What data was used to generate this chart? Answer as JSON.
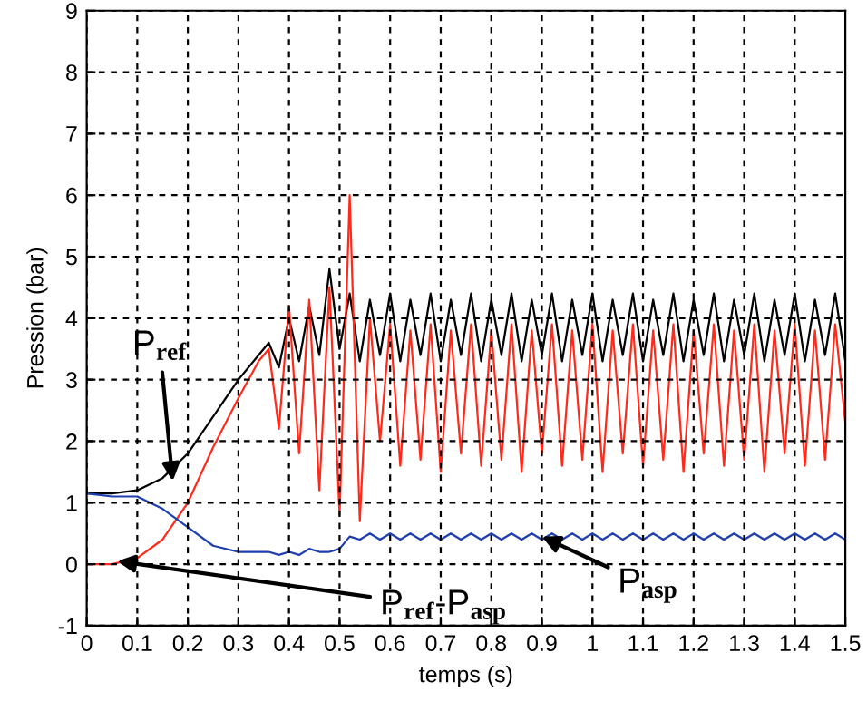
{
  "chart_data": {
    "type": "line",
    "xlabel": "temps (s)",
    "ylabel": "Pression (bar)",
    "xlim": [
      0,
      1.5
    ],
    "ylim": [
      -1,
      9
    ],
    "xticks": [
      0,
      0.1,
      0.2,
      0.3,
      0.4,
      0.5,
      0.6,
      0.7,
      0.8,
      0.9,
      1,
      1.1,
      1.2,
      1.3,
      1.4,
      1.5
    ],
    "yticks": [
      -1,
      0,
      1,
      2,
      3,
      4,
      5,
      6,
      7,
      8,
      9
    ],
    "grid": true,
    "legend": false,
    "x": [
      0,
      0.05,
      0.1,
      0.15,
      0.2,
      0.25,
      0.3,
      0.34,
      0.36,
      0.38,
      0.4,
      0.42,
      0.44,
      0.46,
      0.48,
      0.5,
      0.52,
      0.54,
      0.56,
      0.58,
      0.6,
      0.62,
      0.64,
      0.66,
      0.68,
      0.7,
      0.72,
      0.74,
      0.76,
      0.78,
      0.8,
      0.82,
      0.84,
      0.86,
      0.88,
      0.9,
      0.92,
      0.94,
      0.96,
      0.98,
      1,
      1.02,
      1.04,
      1.06,
      1.08,
      1.1,
      1.12,
      1.14,
      1.16,
      1.18,
      1.2,
      1.22,
      1.24,
      1.26,
      1.28,
      1.3,
      1.32,
      1.34,
      1.36,
      1.38,
      1.4,
      1.42,
      1.44,
      1.46,
      1.48,
      1.5
    ],
    "series": [
      {
        "color": "#000000",
        "values": [
          1.15,
          1.15,
          1.2,
          1.4,
          1.8,
          2.4,
          3.0,
          3.4,
          3.6,
          3.2,
          4.0,
          3.3,
          4.2,
          3.4,
          4.8,
          3.5,
          4.4,
          3.3,
          4.3,
          3.4,
          4.4,
          3.3,
          4.3,
          3.4,
          4.4,
          3.3,
          4.3,
          3.4,
          4.4,
          3.3,
          4.3,
          3.4,
          4.4,
          3.3,
          4.3,
          3.4,
          4.4,
          3.3,
          4.3,
          3.4,
          4.4,
          3.3,
          4.3,
          3.4,
          4.4,
          3.3,
          4.3,
          3.4,
          4.4,
          3.3,
          4.3,
          3.4,
          4.4,
          3.3,
          4.3,
          3.4,
          4.4,
          3.3,
          4.3,
          3.4,
          4.4,
          3.3,
          4.3,
          3.4,
          4.4,
          3.3
        ]
      },
      {
        "color": "#ff2a1a",
        "values": [
          0,
          0,
          0.1,
          0.4,
          1.0,
          1.9,
          2.7,
          3.3,
          3.5,
          2.2,
          4.2,
          1.8,
          4.3,
          1.2,
          4.5,
          0.8,
          6.0,
          0.7,
          4.0,
          2.0,
          3.9,
          1.6,
          3.8,
          1.7,
          3.9,
          1.5,
          3.8,
          1.8,
          3.9,
          1.6,
          3.8,
          1.7,
          3.9,
          1.5,
          3.8,
          1.8,
          3.9,
          1.6,
          3.8,
          1.7,
          3.9,
          1.5,
          3.8,
          1.8,
          3.9,
          1.6,
          3.8,
          1.7,
          3.9,
          1.5,
          3.8,
          1.8,
          3.9,
          1.6,
          3.8,
          1.7,
          3.9,
          1.5,
          3.8,
          1.8,
          3.9,
          1.6,
          3.8,
          1.7,
          3.9,
          2.3
        ]
      },
      {
        "color": "#1f3fb0",
        "values": [
          1.15,
          1.1,
          1.1,
          0.9,
          0.6,
          0.3,
          0.2,
          0.2,
          0.2,
          0.15,
          0.2,
          0.15,
          0.25,
          0.2,
          0.2,
          0.25,
          0.45,
          0.4,
          0.5,
          0.4,
          0.5,
          0.4,
          0.5,
          0.4,
          0.5,
          0.4,
          0.5,
          0.4,
          0.5,
          0.4,
          0.5,
          0.4,
          0.5,
          0.4,
          0.5,
          0.4,
          0.5,
          0.4,
          0.5,
          0.4,
          0.5,
          0.4,
          0.5,
          0.4,
          0.5,
          0.4,
          0.5,
          0.4,
          0.5,
          0.4,
          0.5,
          0.4,
          0.5,
          0.4,
          0.5,
          0.4,
          0.5,
          0.4,
          0.5,
          0.4,
          0.5,
          0.4,
          0.5,
          0.4,
          0.5,
          0.4
        ]
      }
    ],
    "annotations": [
      {
        "text": "P$_{ref}$",
        "x": 0.17,
        "y": 1.35
      },
      {
        "text": "P$_{ref}$-P$_{asp}$",
        "x": 0.06,
        "y": 0.05
      },
      {
        "text": "P$_{asp}$",
        "x": 0.9,
        "y": 0.45
      }
    ]
  }
}
